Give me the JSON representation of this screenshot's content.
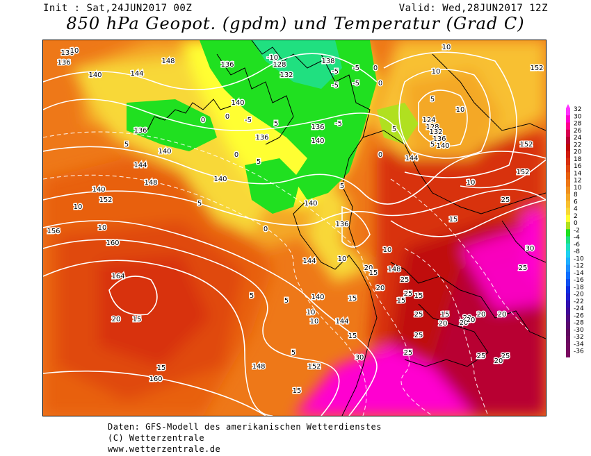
{
  "header": {
    "init": "Init : Sat,24JUN2017 00Z",
    "valid": "Valid: Wed,28JUN2017 12Z",
    "title": "850 hPa Geopot. (gpdm) und Temperatur (Grad C)"
  },
  "legend": {
    "labels": [
      "32",
      "30",
      "28",
      "26",
      "24",
      "22",
      "20",
      "18",
      "16",
      "14",
      "12",
      "10",
      "8",
      "6",
      "4",
      "2",
      "0",
      "-2",
      "-4",
      "-6",
      "-8",
      "-10",
      "-12",
      "-14",
      "-16",
      "-18",
      "-20",
      "-22",
      "-24",
      "-26",
      "-28",
      "-30",
      "-32",
      "-34",
      "-36"
    ],
    "colors": [
      "#ff33ff",
      "#ff00d0",
      "#ff0090",
      "#d80050",
      "#b80030",
      "#c00808",
      "#d01c10",
      "#d83010",
      "#e04810",
      "#e86010",
      "#ee7818",
      "#f09020",
      "#f4a828",
      "#f8c030",
      "#f8d838",
      "#ffff33",
      "#b0e020",
      "#20e020",
      "#20e080",
      "#20e0c0",
      "#20d0f0",
      "#20b0ff",
      "#2090ff",
      "#1070ff",
      "#1050f0",
      "#1030e0",
      "#2020d0",
      "#3010b0",
      "#400a98",
      "#500a80",
      "#5a0870",
      "#600860",
      "#6a0860",
      "#720860",
      "#7a0860"
    ]
  },
  "map": {
    "geopotential_labels": [
      "136",
      "136",
      "140",
      "144",
      "148",
      "136",
      "140",
      "136",
      "140",
      "144",
      "140",
      "148",
      "140",
      "152",
      "156",
      "160",
      "164",
      "140",
      "144",
      "152",
      "148",
      "160",
      "136",
      "138",
      "128",
      "132",
      "136",
      "140",
      "136",
      "140",
      "144",
      "148",
      "124",
      "128",
      "132",
      "136",
      "140",
      "144",
      "152",
      "152",
      "152"
    ],
    "temperature_labels": [
      "10",
      "10",
      "10",
      "5",
      "5",
      "10",
      "5",
      "-5",
      "-10",
      "-5",
      "0",
      "0",
      "5",
      "0",
      "5",
      "0",
      "-5",
      "-5",
      "-5",
      "-5",
      "0",
      "5",
      "0",
      "5",
      "10",
      "5",
      "0",
      "5",
      "10",
      "10",
      "5",
      "15",
      "10",
      "10",
      "15",
      "20",
      "25",
      "25",
      "20",
      "15",
      "15",
      "10",
      "5",
      "15",
      "15",
      "10",
      "15",
      "20",
      "25",
      "20",
      "25",
      "25",
      "20",
      "20",
      "20",
      "20",
      "25",
      "30",
      "30",
      "25",
      "25",
      "30",
      "15",
      "15",
      "20",
      "15",
      "20",
      "25"
    ]
  },
  "footer": {
    "line1": "Daten: GFS-Modell des amerikanischen Wetterdienstes",
    "line2": "(C) Wetterzentrale",
    "line3": "www.wetterzentrale.de"
  }
}
